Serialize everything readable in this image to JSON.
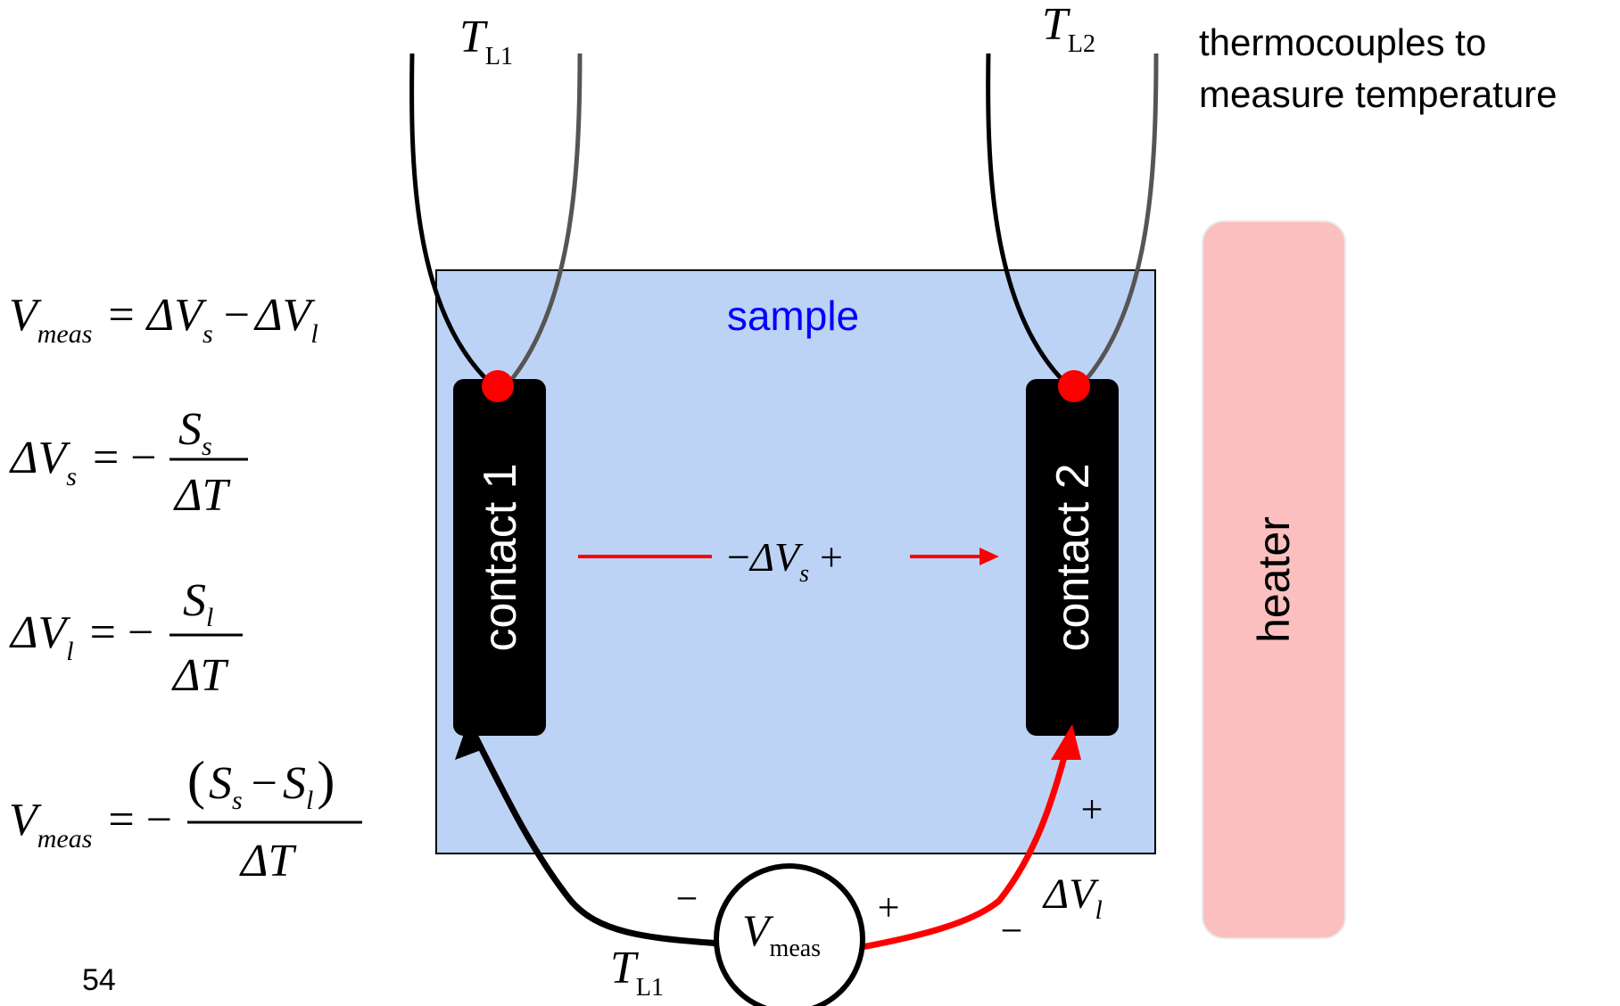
{
  "equations": {
    "eq1": {
      "lhs": "V",
      "lhs_sub": "meas",
      "eq": "=",
      "a": "ΔV",
      "a_sub": "s",
      "minus": "−",
      "b": "ΔV",
      "b_sub": "l"
    },
    "eq2": {
      "lhs": "ΔV",
      "lhs_sub": "s",
      "eq": "= −",
      "num": "S",
      "num_sub": "s",
      "den": "ΔT"
    },
    "eq3": {
      "lhs": "ΔV",
      "lhs_sub": "l",
      "eq": "= −",
      "num": "S",
      "num_sub": "l",
      "den": "ΔT"
    },
    "eq4": {
      "lhs": "V",
      "lhs_sub": "meas",
      "eq": "= −",
      "num_open": "(",
      "num_a": "S",
      "num_a_sub": "s",
      "num_minus": "−",
      "num_b": "S",
      "num_b_sub": "l",
      "num_close": ")",
      "den": "ΔT"
    }
  },
  "page_number": "54",
  "labels": {
    "tl1_top": {
      "main": "T",
      "sub": "L1"
    },
    "tl2_top": {
      "main": "T",
      "sub": "L2"
    },
    "thermocouples_line1": "thermocouples to",
    "thermocouples_line2": "measure temperature",
    "sample": "sample",
    "contact1": "contact 1",
    "contact2": "contact 2",
    "heater": "heater",
    "delta_vs": {
      "minus": "−",
      "main": "ΔV",
      "sub": "s",
      "plus": "+"
    },
    "vmeas": {
      "main": "V",
      "sub": "meas"
    },
    "meter_minus": "−",
    "meter_plus": "+",
    "right_plus": "+",
    "right_minus": "−",
    "delta_vl": {
      "main": "ΔV",
      "sub": "l"
    },
    "tl1_bottom": {
      "main": "T",
      "sub": "L1"
    }
  },
  "colors": {
    "sample_fill": "#bdd3f5",
    "heater_fill": "#fbbfbf",
    "contact_fill": "#000000",
    "junction_dot": "#ff0000",
    "red_wire": "#ff0000",
    "sample_label": "#0000ff"
  }
}
